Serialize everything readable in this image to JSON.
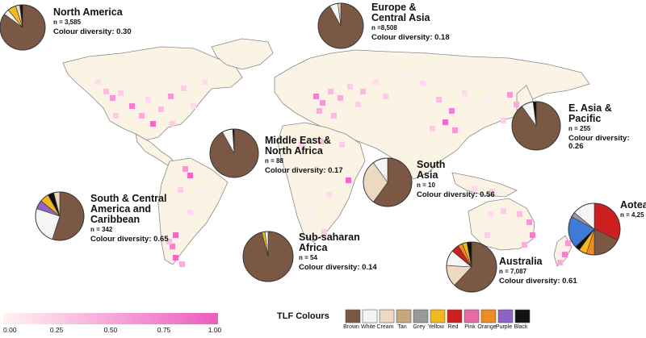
{
  "colors": {
    "land": "#fbf3e3",
    "coast": "#8a8a8a",
    "ocean": "#ffffff",
    "pie_outline": "#333333",
    "scale_low": "#fff4f0",
    "scale_high": "#ee5bc0"
  },
  "palette": {
    "Brown": "#7a5843",
    "White": "#f5f5f5",
    "Cream": "#ecd9c2",
    "Tan": "#c9a77c",
    "Grey": "#9a9a9a",
    "Yellow": "#f2b91c",
    "Red": "#cc1f1f",
    "Pink": "#e86aa6",
    "Orange": "#ef8c23",
    "Purple": "#8d63c4",
    "Black": "#111111",
    "Blue": "#3f7ad6"
  },
  "regions": [
    {
      "id": "north-america",
      "name": "North America",
      "n": "n = 3,585",
      "diversity": "Colour diversity: 0.30",
      "slices": [
        {
          "c": "Brown",
          "v": 0.85
        },
        {
          "c": "White",
          "v": 0.04
        },
        {
          "c": "Yellow",
          "v": 0.06
        },
        {
          "c": "Cream",
          "v": 0.03
        },
        {
          "c": "Black",
          "v": 0.02
        }
      ]
    },
    {
      "id": "europe-central-asia",
      "name": "Europe &\nCentral Asia",
      "n": "n =8,508",
      "diversity": "Colour diversity: 0.18",
      "slices": [
        {
          "c": "Brown",
          "v": 0.92
        },
        {
          "c": "White",
          "v": 0.06
        },
        {
          "c": "Cream",
          "v": 0.02
        }
      ]
    },
    {
      "id": "east-asia-pacific",
      "name": "E. Asia & Pacific",
      "n": "n = 255",
      "diversity": "Colour diversity: 0.26",
      "slices": [
        {
          "c": "Brown",
          "v": 0.9
        },
        {
          "c": "White",
          "v": 0.08
        },
        {
          "c": "Black",
          "v": 0.02
        }
      ]
    },
    {
      "id": "middle-east-north-africa",
      "name": "Middle East &\nNorth Africa",
      "n": "n = 88",
      "diversity": "Colour diversity: 0.17",
      "slices": [
        {
          "c": "Brown",
          "v": 0.92
        },
        {
          "c": "White",
          "v": 0.07
        },
        {
          "c": "Black",
          "v": 0.01
        }
      ]
    },
    {
      "id": "south-asia",
      "name": "South\nAsia",
      "n": "n = 10",
      "diversity": "Colour diversity: 0.56",
      "slices": [
        {
          "c": "Brown",
          "v": 0.6
        },
        {
          "c": "Cream",
          "v": 0.3
        },
        {
          "c": "White",
          "v": 0.1
        }
      ]
    },
    {
      "id": "south-central-america",
      "name": "South & Central\nAmerica and\nCaribbean",
      "n": "n = 342",
      "diversity": "Colour diversity: 0.65",
      "slices": [
        {
          "c": "Brown",
          "v": 0.55
        },
        {
          "c": "White",
          "v": 0.25
        },
        {
          "c": "Purple",
          "v": 0.06
        },
        {
          "c": "Yellow",
          "v": 0.06
        },
        {
          "c": "Black",
          "v": 0.04
        },
        {
          "c": "Cream",
          "v": 0.04
        }
      ]
    },
    {
      "id": "sub-saharan-africa",
      "name": "Sub-saharan\nAfrica",
      "n": "n = 54",
      "diversity": "Colour diversity: 0.14",
      "slices": [
        {
          "c": "Brown",
          "v": 0.96
        },
        {
          "c": "Yellow",
          "v": 0.02
        },
        {
          "c": "White",
          "v": 0.02
        }
      ]
    },
    {
      "id": "australia",
      "name": "Australia",
      "n": "n = 7,087",
      "diversity": "Colour diversity: 0.61",
      "slices": [
        {
          "c": "Brown",
          "v": 0.62
        },
        {
          "c": "Cream",
          "v": 0.14
        },
        {
          "c": "White",
          "v": 0.1
        },
        {
          "c": "Red",
          "v": 0.05
        },
        {
          "c": "Orange",
          "v": 0.03
        },
        {
          "c": "Yellow",
          "v": 0.03
        },
        {
          "c": "Black",
          "v": 0.03
        }
      ]
    },
    {
      "id": "aotearoa",
      "name": "Aotea",
      "n": "n = 4,25",
      "diversity": "",
      "slices": [
        {
          "c": "Red",
          "v": 0.32
        },
        {
          "c": "Brown",
          "v": 0.18
        },
        {
          "c": "Orange",
          "v": 0.05
        },
        {
          "c": "Yellow",
          "v": 0.05
        },
        {
          "c": "Black",
          "v": 0.03
        },
        {
          "c": "Blue",
          "v": 0.2
        },
        {
          "c": "Grey",
          "v": 0.03
        },
        {
          "c": "White",
          "v": 0.14
        }
      ]
    }
  ],
  "scale": {
    "ticks": [
      "0.00",
      "0.25",
      "0.50",
      "0.75",
      "1.00"
    ]
  },
  "legend": {
    "title": "TLF Colours",
    "swatches": [
      "Brown",
      "White",
      "Cream",
      "Tan",
      "Grey",
      "Yellow",
      "Red",
      "Pink",
      "Orange",
      "Purple",
      "Black"
    ]
  },
  "hotspot_levels": [
    0.05,
    0.15,
    0.25,
    0.35,
    0.45,
    0.6,
    0.75,
    0.9
  ]
}
